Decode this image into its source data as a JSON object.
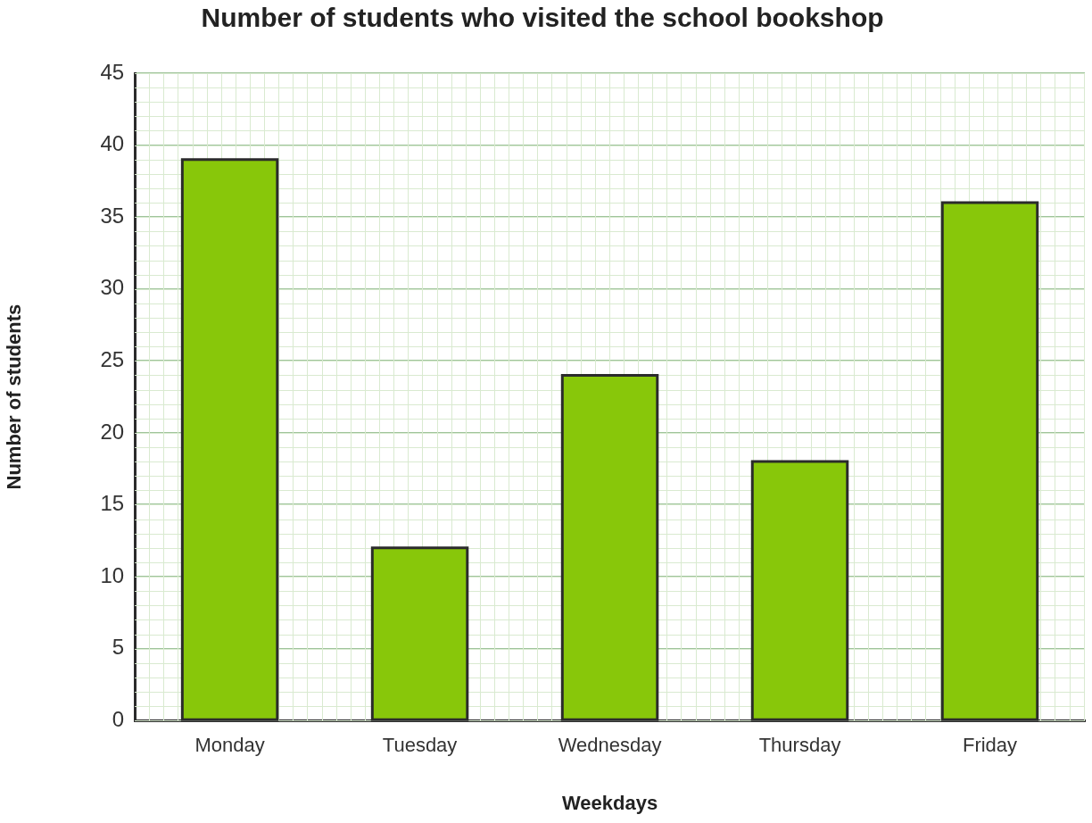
{
  "chart_data": {
    "type": "bar",
    "title": "Number of students who visited the school bookshop",
    "xlabel": "Weekdays",
    "ylabel": "Number of students",
    "categories": [
      "Monday",
      "Tuesday",
      "Wednesday",
      "Thursday",
      "Friday"
    ],
    "values": [
      39,
      12,
      24,
      18,
      36
    ],
    "color": "#88c70a",
    "ylim": [
      0,
      45
    ],
    "yticks": [
      0,
      5,
      10,
      15,
      20,
      25,
      30,
      35,
      40,
      45
    ],
    "grid": true,
    "legend": false
  }
}
